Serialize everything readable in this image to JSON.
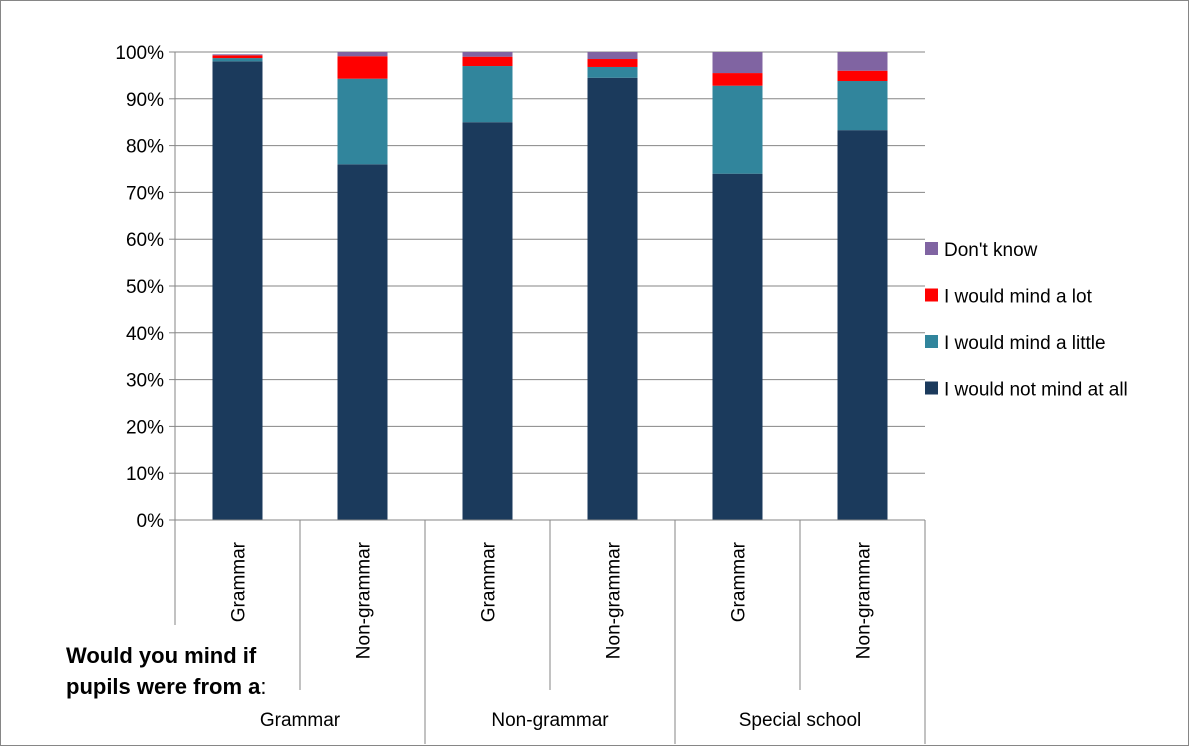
{
  "chart_data": {
    "type": "bar",
    "stacked": true,
    "title": "",
    "ylim": [
      0,
      100
    ],
    "y_ticks": [
      "0%",
      "10%",
      "20%",
      "30%",
      "40%",
      "50%",
      "60%",
      "70%",
      "80%",
      "90%",
      "100%"
    ],
    "gridlines": true,
    "legend_position": "right",
    "groups": [
      "Grammar",
      "Non-grammar",
      "Special school"
    ],
    "categories": [
      "Grammar",
      "Non-grammar",
      "Grammar",
      "Non-grammar",
      "Grammar",
      "Non-grammar"
    ],
    "series": [
      {
        "name": "I would not mind at all",
        "color": "#1b3a5c",
        "values": [
          98,
          76,
          85,
          94.5,
          74,
          83.3
        ]
      },
      {
        "name": "I would mind a little",
        "color": "#31859c",
        "values": [
          0.7,
          18.3,
          12,
          2.3,
          18.8,
          10.5
        ]
      },
      {
        "name": "I would mind a lot",
        "color": "#ff0000",
        "values": [
          0.6,
          4.8,
          2,
          1.7,
          2.7,
          2.2
        ]
      },
      {
        "name": "Don't know",
        "color": "#8064a2",
        "values": [
          0.2,
          0.9,
          1,
          1.5,
          4.5,
          4
        ]
      }
    ],
    "axis_question": {
      "bold": "Would you mind if pupils were from a",
      "colon": ":"
    }
  }
}
